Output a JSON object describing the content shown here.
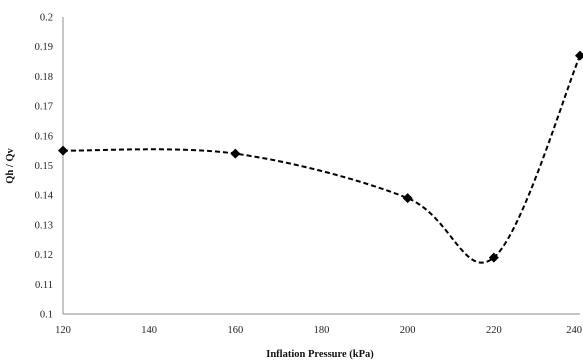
{
  "chart_data": {
    "type": "scatter",
    "title": "",
    "xlabel": "Inflation Pressure (kPa)",
    "ylabel": "Qh / Qv",
    "xlim": [
      120,
      240
    ],
    "ylim": [
      0.1,
      0.2
    ],
    "xticks": [
      "120",
      "140",
      "160",
      "180",
      "200",
      "220",
      "240"
    ],
    "yticks": [
      "0.1",
      "0.11",
      "0.12",
      "0.13",
      "0.14",
      "0.15",
      "0.16",
      "0.17",
      "0.18",
      "0.19",
      "0.2"
    ],
    "grid": false,
    "legend": "none",
    "series": [
      {
        "marker": "diamond",
        "line": "smoothed-dashed",
        "color": "#000000",
        "points": [
          {
            "x": 120,
            "y": 0.155
          },
          {
            "x": 160,
            "y": 0.154
          },
          {
            "x": 200,
            "y": 0.139
          },
          {
            "x": 220,
            "y": 0.119
          },
          {
            "x": 240,
            "y": 0.187
          }
        ]
      }
    ]
  }
}
